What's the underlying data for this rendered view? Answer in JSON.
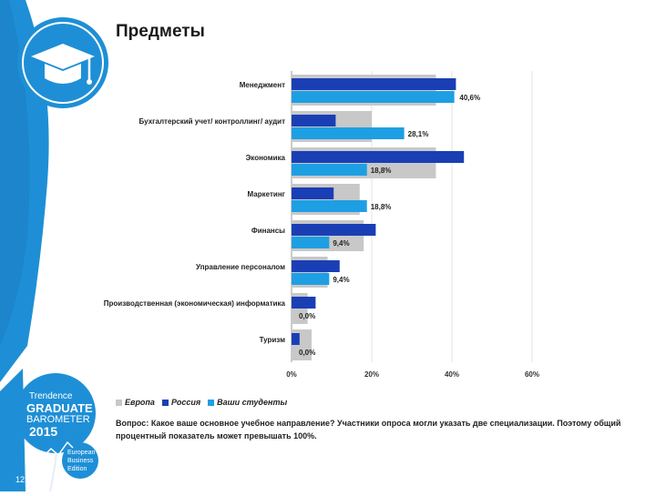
{
  "page": {
    "title": "Предметы",
    "page_number": "12"
  },
  "badge": {
    "line1": "Trendence",
    "line2": "GRADUATE",
    "line3": "BAROMETER",
    "line4": "2015",
    "line5": "European",
    "line6": "Business",
    "line7": "Edition"
  },
  "legend": {
    "items": [
      {
        "label": "Европа",
        "color": "#c8c8c8"
      },
      {
        "label": "Россия",
        "color": "#1a3fb5"
      },
      {
        "label": "Ваши студенты",
        "color": "#1e9fe3"
      }
    ]
  },
  "note": {
    "text": "Вопрос: Какое ваше основное учебное направление? Участники опроса могли указать две специализации. Поэтому общий процентный показатель может превышать 100%."
  },
  "colors": {
    "europe": "#c8c8c8",
    "russia": "#1a3fb5",
    "students": "#1e9fe3",
    "sidebar": "#1e8fd6"
  },
  "chart_data": {
    "type": "bar",
    "orientation": "horizontal",
    "categories": [
      "Менеджмент",
      "Бухгалтерский учет/ контроллинг/ аудит",
      "Экономика",
      "Маркетинг",
      "Финансы",
      "Управление персоналом",
      "Производственная (экономическая) информатика",
      "Туризм"
    ],
    "series": [
      {
        "name": "Европа",
        "values": [
          36,
          20,
          36,
          17,
          18,
          9,
          4,
          5
        ]
      },
      {
        "name": "Россия",
        "values": [
          41,
          11,
          43,
          10.5,
          21,
          12,
          6,
          2
        ]
      },
      {
        "name": "Ваши студенты",
        "values": [
          40.6,
          28.1,
          18.8,
          18.8,
          9.4,
          9.4,
          0.0,
          0.0
        ]
      }
    ],
    "data_labels": [
      "40,6%",
      "28,1%",
      "18,8%",
      "18,8%",
      "9,4%",
      "9,4%",
      "0,0%",
      "0,0%"
    ],
    "xlim": [
      0,
      60
    ],
    "x_ticks": [
      "0%",
      "20%",
      "40%",
      "60%"
    ],
    "grid": true,
    "legend_position": "bottom-left"
  }
}
